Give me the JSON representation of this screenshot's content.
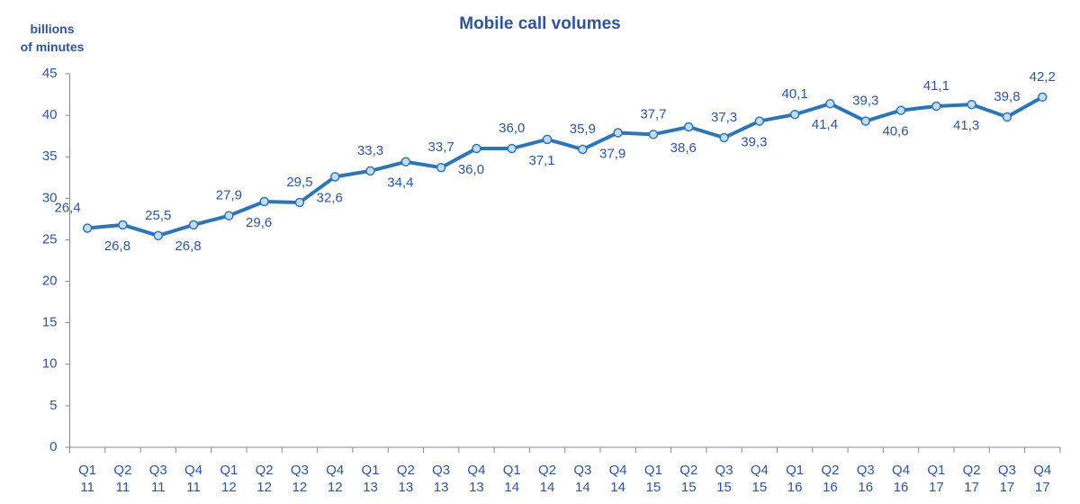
{
  "chart_data": {
    "type": "line",
    "title": "Mobile call volumes",
    "y_label": "billions\nof minutes",
    "categories": [
      "Q1\n11",
      "Q2\n11",
      "Q3\n11",
      "Q4\n11",
      "Q1\n12",
      "Q2\n12",
      "Q3\n12",
      "Q4\n12",
      "Q1\n13",
      "Q2\n13",
      "Q3\n13",
      "Q4\n13",
      "Q1\n14",
      "Q2\n14",
      "Q3\n14",
      "Q4\n14",
      "Q1\n15",
      "Q2\n15",
      "Q3\n15",
      "Q4\n15",
      "Q1\n16",
      "Q2\n16",
      "Q3\n16",
      "Q4\n16",
      "Q1\n17",
      "Q2\n17",
      "Q3\n17",
      "Q4\n17"
    ],
    "series": [
      {
        "name": "Mobile call volumes",
        "color": "#2e75b6",
        "values": [
          26.4,
          26.8,
          25.5,
          26.8,
          27.9,
          29.6,
          29.5,
          32.6,
          33.3,
          34.4,
          33.7,
          36.0,
          36.0,
          37.1,
          35.9,
          37.9,
          37.7,
          38.6,
          37.3,
          39.3,
          40.1,
          41.4,
          39.3,
          40.6,
          41.1,
          41.3,
          39.8,
          42.2
        ],
        "value_labels": [
          "26,4",
          "26,8",
          "25,5",
          "26,8",
          "27,9",
          "29,6",
          "29,5",
          "32,6",
          "33,3",
          "34,4",
          "33,7",
          "36,0",
          "36,0",
          "37,1",
          "35,9",
          "37,9",
          "37,7",
          "38,6",
          "37,3",
          "39,3",
          "40,1",
          "41,4",
          "39,3",
          "40,6",
          "41,1",
          "41,3",
          "39,8",
          "42,2"
        ]
      }
    ],
    "ylim": [
      0,
      45
    ],
    "yticks": [
      0,
      5,
      10,
      15,
      20,
      25,
      30,
      35,
      40,
      45
    ],
    "grid": false
  }
}
